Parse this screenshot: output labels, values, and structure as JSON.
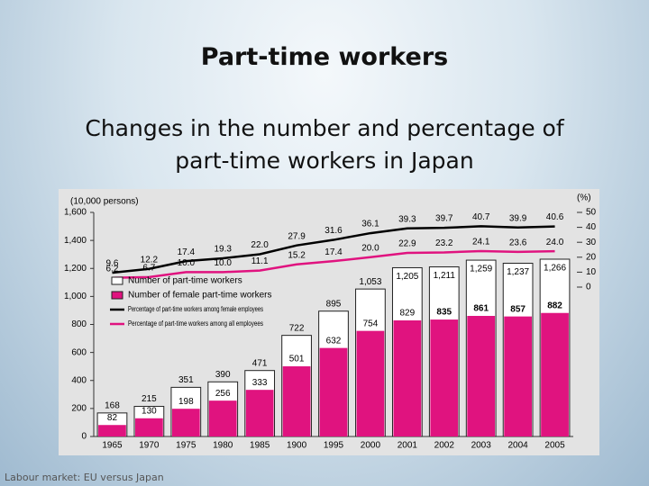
{
  "slide": {
    "title": "Part-time workers",
    "subtitle": [
      "Changes in the number and percentage of",
      "part-time workers in Japan"
    ],
    "footer": "Labour market: EU versus Japan"
  },
  "chart_data": {
    "type": "bar",
    "y_label": "(10,000 persons)",
    "y2_label": "(%)",
    "categories": [
      "1965",
      "1970",
      "1975",
      "1980",
      "1985",
      "1900",
      "1995",
      "2000",
      "2001",
      "2002",
      "2003",
      "2004",
      "2005"
    ],
    "series": [
      {
        "name": "Number of part-time workers",
        "color": "#ffffff",
        "kind": "bar",
        "values": [
          168,
          215,
          351,
          390,
          471,
          722,
          895,
          1053,
          1205,
          1211,
          1259,
          1237,
          1266
        ],
        "value_labels": [
          "168",
          "215",
          "351",
          "390",
          "471",
          "722",
          "895",
          "1,053",
          "1,205",
          "1,211",
          "1,259",
          "1,237",
          "1,266"
        ]
      },
      {
        "name": "Number of female part-time workers",
        "color": "#e0137f",
        "kind": "bar",
        "values": [
          82,
          130,
          198,
          256,
          333,
          501,
          632,
          754,
          829,
          835,
          861,
          857,
          882
        ],
        "value_labels": [
          "82",
          "130",
          "198",
          "256",
          "333",
          "501",
          "632",
          "754",
          "829",
          "835",
          "861",
          "857",
          "882"
        ]
      },
      {
        "name": "Percentage of part-time workers among female employees",
        "color": "#000000",
        "kind": "line",
        "axis": "y2",
        "values": [
          9.6,
          12.2,
          17.4,
          19.3,
          22.0,
          27.9,
          31.6,
          36.1,
          39.3,
          39.7,
          40.7,
          39.9,
          40.6
        ],
        "value_labels": [
          "9.6",
          "12.2",
          "17.4",
          "19.3",
          "22.0",
          "27.9",
          "31.6",
          "36.1",
          "39.3",
          "39.7",
          "40.7",
          "39.9",
          "40.6"
        ]
      },
      {
        "name": "Percentage of part-time workers among all employees",
        "color": "#e0137f",
        "kind": "line",
        "axis": "y2",
        "values": [
          6.2,
          6.7,
          10.0,
          10.0,
          11.1,
          15.2,
          17.4,
          20.0,
          22.9,
          23.2,
          24.1,
          23.6,
          24.0
        ],
        "value_labels": [
          "6.2",
          "6.7",
          "10.0",
          "10.0",
          "11.1",
          "15.2",
          "17.4",
          "20.0",
          "22.9",
          "23.2",
          "24.1",
          "23.6",
          "24.0"
        ]
      }
    ],
    "ylim": [
      0,
      1600
    ],
    "yticks": [
      0,
      200,
      400,
      600,
      800,
      {
        "value": 1000,
        "label": "1,000"
      },
      {
        "value": 1200,
        "label": "1,200"
      },
      {
        "value": 1400,
        "label": "1,400"
      },
      {
        "value": 1600,
        "label": "1,600"
      }
    ],
    "y2lim": [
      -100,
      50
    ],
    "y2ticks": [
      0,
      10,
      20,
      30,
      40,
      50
    ],
    "legend": "left"
  }
}
